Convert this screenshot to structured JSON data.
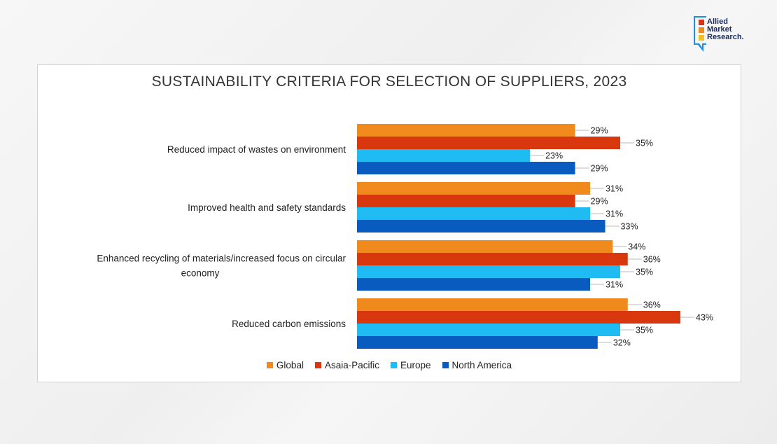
{
  "logo": {
    "lines": [
      "Allied",
      "Market",
      "Research."
    ],
    "colors": [
      "#d9331a",
      "#f08a1c",
      "#f5c21b"
    ]
  },
  "chart_data": {
    "type": "bar",
    "orientation": "horizontal",
    "title": "SUSTAINABILITY CRITERIA FOR SELECTION OF SUPPLIERS, 2023",
    "categories": [
      [
        "Reduced impact of wastes on environment"
      ],
      [
        "Improved health and safety standards"
      ],
      [
        "Enhanced recycling of materials/increased focus on circular",
        "economy"
      ],
      [
        "Reduced carbon emissions"
      ]
    ],
    "series": [
      {
        "name": "Global",
        "color": "#f08a1c",
        "values": [
          29,
          31,
          34,
          36
        ],
        "labels": [
          "29%",
          "31%",
          "34%",
          "36%"
        ]
      },
      {
        "name": "Asaia-Pacific",
        "color": "#d9380f",
        "values": [
          35,
          29,
          36,
          43
        ],
        "labels": [
          "35%",
          "29%",
          "36%",
          "43%"
        ]
      },
      {
        "name": "Europe",
        "color": "#1ebcf2",
        "values": [
          23,
          31,
          35,
          35
        ],
        "labels": [
          "23%",
          "31%",
          "35%",
          "35%"
        ]
      },
      {
        "name": "North America",
        "color": "#0a5bbf",
        "values": [
          29,
          33,
          31,
          32
        ],
        "labels": [
          "29%",
          "33%",
          "31%",
          "32%"
        ]
      }
    ],
    "xlim": [
      0,
      43
    ],
    "grid": false,
    "legend_position": "bottom"
  }
}
